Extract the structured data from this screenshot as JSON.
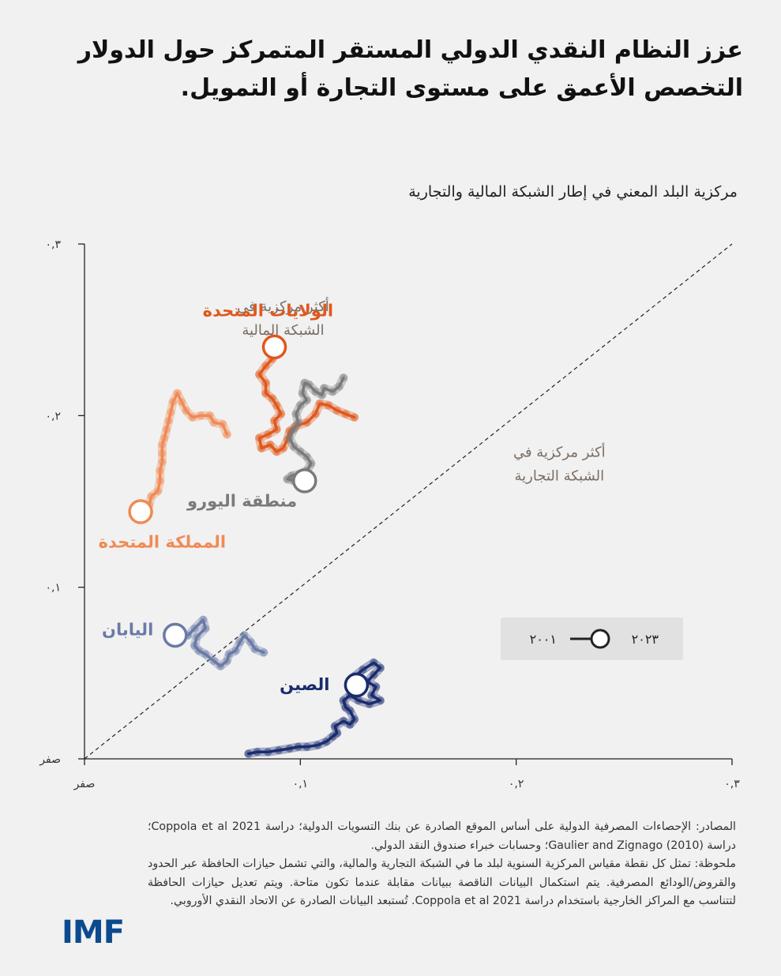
{
  "title_lines": [
    "عزز النظام النقدي الدولي المستقر المتمركز حول الدولار",
    "التخصص الأعمق على مستوى التجارة أو التمويل."
  ],
  "subtitle": "مركزية البلد المعني في إطار الشبكة المالية والتجارية",
  "chart_data": {
    "type": "scatter",
    "xlim": [
      0,
      0.3
    ],
    "ylim": [
      0,
      0.3
    ],
    "x_ticks": [
      {
        "value": 0,
        "label": "صفر"
      },
      {
        "value": 0.1,
        "label": "٠,١"
      },
      {
        "value": 0.2,
        "label": "٠,٢"
      },
      {
        "value": 0.3,
        "label": "٠,٣"
      }
    ],
    "y_ticks": [
      {
        "value": 0,
        "label": "صفر"
      },
      {
        "value": 0.1,
        "label": "٠,١"
      },
      {
        "value": 0.2,
        "label": "٠,٢"
      },
      {
        "value": 0.3,
        "label": "٠,٣"
      }
    ],
    "diagonal": true,
    "region_labels": [
      {
        "text_lines": [
          "أكثر مركزية في",
          "الشبكة المالية"
        ],
        "region": "upper-left"
      },
      {
        "text_lines": [
          "أكثر مركزية في",
          "الشبكة التجارية"
        ],
        "region": "lower-right"
      }
    ],
    "legend": {
      "start_label": "٢٠٠١",
      "end_label": "٢٠٢٣",
      "placement": "bottom-right"
    },
    "series": [
      {
        "name": "الولايات المتحدة",
        "color": "#e0581c",
        "points": [
          [
            0.125,
            0.199
          ],
          [
            0.121,
            0.201
          ],
          [
            0.117,
            0.203
          ],
          [
            0.113,
            0.206
          ],
          [
            0.109,
            0.207
          ],
          [
            0.107,
            0.201
          ],
          [
            0.103,
            0.196
          ],
          [
            0.098,
            0.194
          ],
          [
            0.095,
            0.191
          ],
          [
            0.094,
            0.186
          ],
          [
            0.092,
            0.181
          ],
          [
            0.089,
            0.179
          ],
          [
            0.086,
            0.183
          ],
          [
            0.082,
            0.181
          ],
          [
            0.081,
            0.187
          ],
          [
            0.085,
            0.189
          ],
          [
            0.089,
            0.192
          ],
          [
            0.088,
            0.197
          ],
          [
            0.091,
            0.201
          ],
          [
            0.089,
            0.206
          ],
          [
            0.087,
            0.21
          ],
          [
            0.084,
            0.213
          ],
          [
            0.084,
            0.219
          ],
          [
            0.081,
            0.224
          ],
          [
            0.084,
            0.229
          ],
          [
            0.087,
            0.233
          ],
          [
            0.088,
            0.24
          ]
        ]
      },
      {
        "name": "منطقة اليورو",
        "color": "#7a7a7a",
        "points": [
          [
            0.12,
            0.222
          ],
          [
            0.118,
            0.217
          ],
          [
            0.115,
            0.214
          ],
          [
            0.111,
            0.216
          ],
          [
            0.11,
            0.212
          ],
          [
            0.107,
            0.214
          ],
          [
            0.104,
            0.218
          ],
          [
            0.102,
            0.219
          ],
          [
            0.101,
            0.213
          ],
          [
            0.103,
            0.209
          ],
          [
            0.1,
            0.206
          ],
          [
            0.098,
            0.201
          ],
          [
            0.099,
            0.196
          ],
          [
            0.097,
            0.192
          ],
          [
            0.095,
            0.187
          ],
          [
            0.097,
            0.182
          ],
          [
            0.1,
            0.179
          ],
          [
            0.103,
            0.176
          ],
          [
            0.105,
            0.172
          ],
          [
            0.103,
            0.168
          ],
          [
            0.1,
            0.166
          ],
          [
            0.096,
            0.165
          ],
          [
            0.094,
            0.163
          ],
          [
            0.097,
            0.162
          ],
          [
            0.102,
            0.162
          ]
        ]
      },
      {
        "name": "المملكة المتحدة",
        "color": "#f08a55",
        "points": [
          [
            0.066,
            0.189
          ],
          [
            0.064,
            0.195
          ],
          [
            0.06,
            0.196
          ],
          [
            0.058,
            0.2
          ],
          [
            0.054,
            0.2
          ],
          [
            0.05,
            0.199
          ],
          [
            0.047,
            0.203
          ],
          [
            0.045,
            0.208
          ],
          [
            0.043,
            0.213
          ],
          [
            0.041,
            0.208
          ],
          [
            0.04,
            0.202
          ],
          [
            0.039,
            0.197
          ],
          [
            0.038,
            0.192
          ],
          [
            0.037,
            0.187
          ],
          [
            0.036,
            0.183
          ],
          [
            0.036,
            0.178
          ],
          [
            0.036,
            0.173
          ],
          [
            0.035,
            0.168
          ],
          [
            0.035,
            0.162
          ],
          [
            0.034,
            0.156
          ],
          [
            0.031,
            0.153
          ],
          [
            0.03,
            0.148
          ],
          [
            0.026,
            0.144
          ]
        ]
      },
      {
        "name": "اليابان",
        "color": "#6a7aa6",
        "points": [
          [
            0.083,
            0.062
          ],
          [
            0.079,
            0.064
          ],
          [
            0.077,
            0.068
          ],
          [
            0.074,
            0.072
          ],
          [
            0.072,
            0.068
          ],
          [
            0.07,
            0.063
          ],
          [
            0.067,
            0.061
          ],
          [
            0.066,
            0.057
          ],
          [
            0.063,
            0.054
          ],
          [
            0.06,
            0.057
          ],
          [
            0.056,
            0.061
          ],
          [
            0.053,
            0.063
          ],
          [
            0.051,
            0.066
          ],
          [
            0.052,
            0.071
          ],
          [
            0.056,
            0.076
          ],
          [
            0.055,
            0.081
          ],
          [
            0.051,
            0.076
          ],
          [
            0.048,
            0.072
          ],
          [
            0.045,
            0.072
          ],
          [
            0.042,
            0.072
          ]
        ]
      },
      {
        "name": "الصين",
        "color": "#1a2c6e",
        "points": [
          [
            0.076,
            0.003
          ],
          [
            0.08,
            0.004
          ],
          [
            0.085,
            0.004
          ],
          [
            0.09,
            0.005
          ],
          [
            0.095,
            0.006
          ],
          [
            0.099,
            0.007
          ],
          [
            0.103,
            0.007
          ],
          [
            0.108,
            0.008
          ],
          [
            0.112,
            0.01
          ],
          [
            0.115,
            0.013
          ],
          [
            0.117,
            0.015
          ],
          [
            0.116,
            0.019
          ],
          [
            0.12,
            0.022
          ],
          [
            0.123,
            0.02
          ],
          [
            0.125,
            0.023
          ],
          [
            0.123,
            0.028
          ],
          [
            0.121,
            0.03
          ],
          [
            0.12,
            0.034
          ],
          [
            0.123,
            0.037
          ],
          [
            0.127,
            0.034
          ],
          [
            0.132,
            0.032
          ],
          [
            0.137,
            0.034
          ],
          [
            0.133,
            0.037
          ],
          [
            0.135,
            0.042
          ],
          [
            0.131,
            0.045
          ],
          [
            0.134,
            0.049
          ],
          [
            0.137,
            0.053
          ],
          [
            0.134,
            0.056
          ],
          [
            0.129,
            0.052
          ],
          [
            0.125,
            0.048
          ],
          [
            0.126,
            0.043
          ]
        ]
      }
    ]
  },
  "footnote": [
    "المصادر: الإحصاءات المصرفية الدولية على أساس الموقع الصادرة عن بنك التسويات الدولية؛ دراسة Coppola et al 2021؛ دراسة (2010) Gaulier and Zignago؛ وحسابات خبراء صندوق النقد الدولي.",
    "ملحوظة: تمثل كل نقطة مقياس المركزية السنوية لبلد ما في الشبكة التجارية والمالية، والتي تشمل حيازات الحافظة عبر الحدود والقروض/الودائع المصرفية. يتم استكمال البيانات الناقصة ببيانات مقابلة عندما تكون متاحة. ويتم تعديل حيازات الحافظة لتتناسب مع المراكز الخارجية باستخدام دراسة Coppola et al 2021. تُستبعد البيانات الصادرة عن الاتحاد النقدي الأوروبي."
  ],
  "logo_text": "IMF"
}
